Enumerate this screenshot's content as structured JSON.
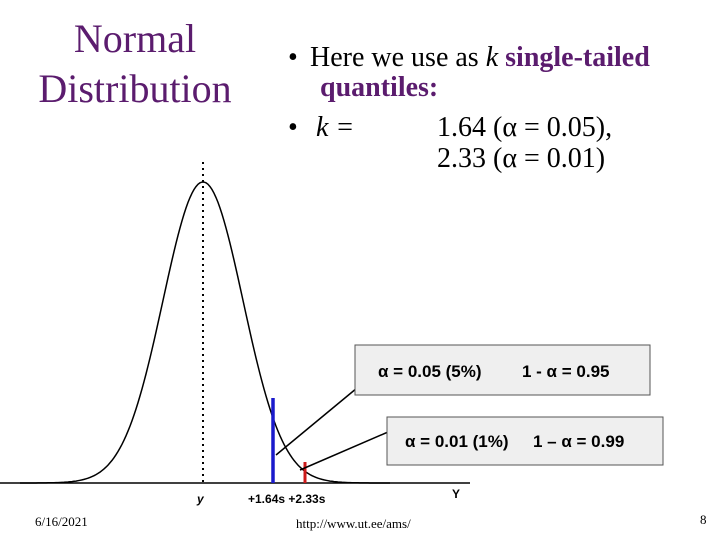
{
  "title": [
    "Normal",
    "Distribution"
  ],
  "bullets": [
    {
      "lead": "Here we use as",
      "var": "k",
      "emph": [
        "single-tailed",
        "quantiles:"
      ]
    },
    {
      "var": "k =",
      "values": [
        "1.64 (α = 0.05),",
        "2.33 (α = 0.01)"
      ]
    }
  ],
  "boxes": [
    {
      "left": "α = 0.05 (5%)",
      "right": "1 - α = 0.95"
    },
    {
      "left": "α = 0.01 (1%)",
      "right": "1 – α = 0.99"
    }
  ],
  "axis_labels": {
    "mean": "y",
    "quantiles": "+1.64s +2.33s",
    "axis": "Y"
  },
  "footer": {
    "date": "6/16/2021",
    "url": "http://www.ut.ee/ams/",
    "page": "8"
  }
}
